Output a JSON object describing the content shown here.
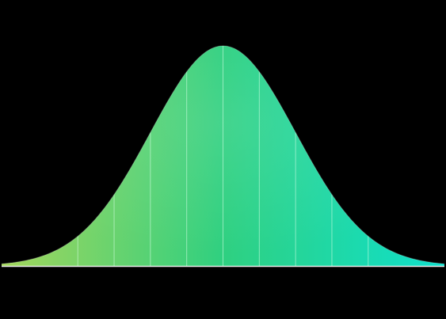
{
  "chart_data": {
    "type": "area",
    "title": "",
    "xlabel": "",
    "ylabel": "",
    "distribution": "normal",
    "mean": 0,
    "std": 1,
    "xlim": [
      -3.05,
      3.05
    ],
    "ylim": [
      0,
      1.05
    ],
    "grid": false,
    "legend": "none",
    "segment_boundaries": [
      -2,
      -1.5,
      -1,
      -0.5,
      0,
      0.5,
      1,
      1.5,
      2
    ],
    "series": [
      {
        "values_note": "",
        "x": [
          -3,
          -2.5,
          -2,
          -1.5,
          -1,
          -0.5,
          0,
          0.5,
          1,
          1.5,
          2,
          2.5,
          3
        ],
        "y": [
          0.011,
          0.044,
          0.135,
          0.325,
          0.607,
          0.882,
          1.0,
          0.882,
          0.607,
          0.325,
          0.135,
          0.044,
          0.011
        ]
      }
    ],
    "colors": {
      "background": "#000000",
      "gradient_left": "#a4d65c",
      "gradient_mid": "#2fd080",
      "gradient_right": "#0fe0cc",
      "separator": "#d8ffe8",
      "baseline": "#ffffff"
    }
  }
}
